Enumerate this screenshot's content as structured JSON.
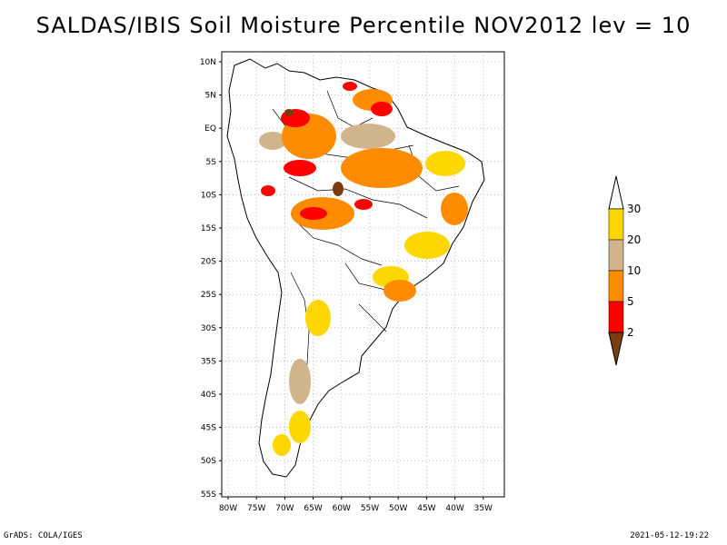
{
  "title": "SALDAS/IBIS Soil Moisture Percentile NOV2012 lev = 10",
  "lat_labels": [
    "10N",
    "5N",
    "EQ",
    "5S",
    "10S",
    "15S",
    "20S",
    "25S",
    "30S",
    "35S",
    "40S",
    "45S",
    "50S",
    "55S"
  ],
  "lon_labels": [
    "80W",
    "75W",
    "70W",
    "65W",
    "60W",
    "55W",
    "50W",
    "45W",
    "40W",
    "35W"
  ],
  "legend": {
    "labels": [
      "2",
      "5",
      "10",
      "20",
      "30"
    ],
    "colors": [
      "#7a3d10",
      "#ff0000",
      "#ff8c00",
      "#d2b48c",
      "#ffd700",
      "#ffffff"
    ]
  },
  "colors": {
    "land_outline": "#000000",
    "orange": "#ff8c00",
    "red": "#ff0000",
    "tan": "#d2b48c",
    "yellow": "#ffd700",
    "brown": "#7a3d10"
  },
  "footer": {
    "left": "GrADS: COLA/IGES",
    "right": "2021-05-12-19:22"
  }
}
